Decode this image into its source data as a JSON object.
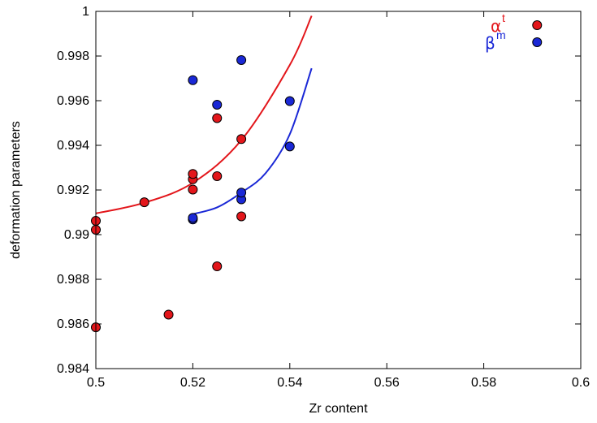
{
  "chart_data": {
    "type": "scatter",
    "title": "",
    "xlabel": "Zr content",
    "ylabel": "deformation parameters",
    "xlim": [
      0.5,
      0.6
    ],
    "ylim": [
      0.984,
      1.0
    ],
    "grid": false,
    "legend_position": "top-right",
    "x_ticks": [
      "0.5",
      "0.52",
      "0.54",
      "0.56",
      "0.58",
      "0.6"
    ],
    "y_ticks": [
      "0.984",
      "0.986",
      "0.988",
      "0.99",
      "0.992",
      "0.994",
      "0.996",
      "0.998",
      "1"
    ],
    "series": [
      {
        "name": "αᵗ",
        "legend_symbol": "α",
        "legend_sup": "t",
        "color": "#e3161b",
        "points": [
          [
            0.5,
            0.98585
          ],
          [
            0.5,
            0.99022
          ],
          [
            0.5,
            0.99062
          ],
          [
            0.51,
            0.99145
          ],
          [
            0.515,
            0.98642
          ],
          [
            0.52,
            0.99202
          ],
          [
            0.52,
            0.99248
          ],
          [
            0.52,
            0.99272
          ],
          [
            0.525,
            0.98858
          ],
          [
            0.525,
            0.99262
          ],
          [
            0.525,
            0.99522
          ],
          [
            0.53,
            0.99082
          ],
          [
            0.53,
            0.99428
          ],
          [
            0.591,
            0.99938
          ]
        ],
        "fit": [
          [
            0.5,
            0.99095
          ],
          [
            0.51,
            0.99143
          ],
          [
            0.52,
            0.99232
          ],
          [
            0.53,
            0.99423
          ],
          [
            0.54,
            0.9976
          ],
          [
            0.5445,
            0.9998
          ]
        ]
      },
      {
        "name": "βᵐ",
        "legend_symbol": "β",
        "legend_sup": "m",
        "color": "#1a28d6",
        "points": [
          [
            0.52,
            0.99068
          ],
          [
            0.52,
            0.99075
          ],
          [
            0.52,
            0.99692
          ],
          [
            0.525,
            0.99582
          ],
          [
            0.53,
            0.99158
          ],
          [
            0.53,
            0.99188
          ],
          [
            0.53,
            0.99782
          ],
          [
            0.54,
            0.99395
          ],
          [
            0.54,
            0.99598
          ],
          [
            0.591,
            0.99862
          ]
        ],
        "fit": [
          [
            0.52,
            0.99092
          ],
          [
            0.525,
            0.99122
          ],
          [
            0.53,
            0.99188
          ],
          [
            0.535,
            0.99275
          ],
          [
            0.54,
            0.9945
          ],
          [
            0.5445,
            0.99745
          ]
        ]
      }
    ]
  }
}
